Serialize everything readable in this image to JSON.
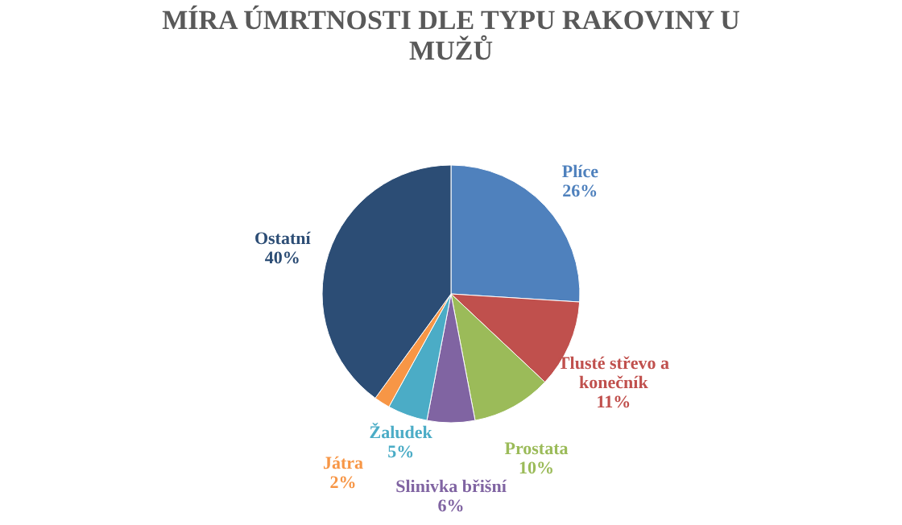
{
  "chart_data": {
    "type": "pie",
    "title": "MÍRA ÚMRTNOSTI DLE TYPU RAKOVINY U MUŽŮ",
    "categories": [
      "Plíce",
      "Tlusté střevo a konečník",
      "Prostata",
      "Slinivka břišní",
      "Žaludek",
      "Játra",
      "Ostatní"
    ],
    "values": [
      26,
      11,
      10,
      6,
      5,
      2,
      40
    ],
    "value_labels": [
      "26%",
      "11%",
      "10%",
      "6%",
      "5%",
      "2%",
      "40%"
    ],
    "colors": [
      "#4f81bd",
      "#c0504d",
      "#9bbb59",
      "#8064a2",
      "#4bacc6",
      "#f79646",
      "#2c4d75"
    ]
  }
}
